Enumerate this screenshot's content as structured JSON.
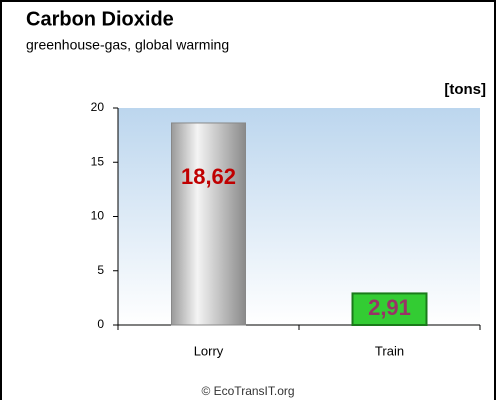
{
  "chart_data": {
    "type": "bar",
    "title": "Carbon Dioxide",
    "subtitle": "greenhouse-gas, global warming",
    "unit_label": "[tons]",
    "footer": "© EcoTransIT.org",
    "categories": [
      "Lorry",
      "Train"
    ],
    "values": [
      18.62,
      2.91
    ],
    "value_labels": [
      "18,62",
      "2,91"
    ],
    "colors": [
      "#c8c8c8",
      "#33cc33"
    ],
    "label_colors": [
      "#c00000",
      "#993366"
    ],
    "ylim": [
      0,
      20
    ],
    "yticks": [
      0,
      5,
      10,
      15,
      20
    ],
    "grid": false
  }
}
